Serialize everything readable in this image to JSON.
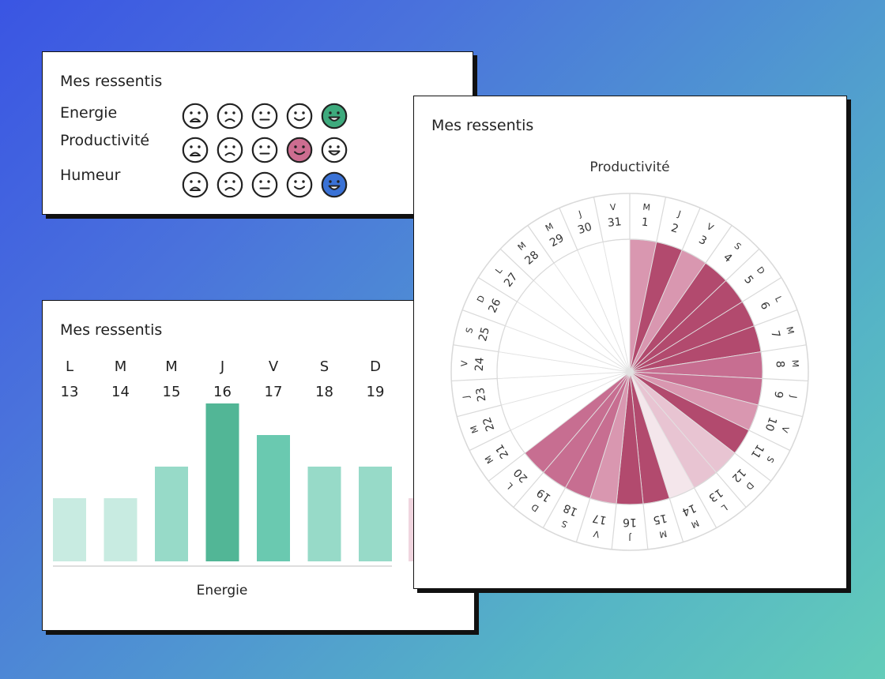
{
  "moods_card": {
    "title": "Mes ressentis",
    "rows": [
      {
        "label": "Energie",
        "selected": 5,
        "color": "#3eaa7d"
      },
      {
        "label": "Productivité",
        "selected": 4,
        "color": "#cd6d90"
      },
      {
        "label": "Humeur",
        "selected": 5,
        "color": "#3a72d6"
      }
    ],
    "faces": [
      "very-sad-face-icon",
      "sad-face-icon",
      "neutral-face-icon",
      "smile-face-icon",
      "grin-face-icon"
    ]
  },
  "energy_card": {
    "title": "Mes ressentis"
  },
  "productivity_card": {
    "title": "Mes ressentis"
  },
  "chart_data": [
    {
      "type": "bar",
      "xlabel": "Energie",
      "categories": [
        "L",
        "M",
        "M",
        "J",
        "V",
        "S",
        "D"
      ],
      "days": [
        "13",
        "14",
        "15",
        "16",
        "17",
        "18",
        "19"
      ],
      "values": [
        2,
        2,
        3,
        5,
        4,
        3,
        3
      ],
      "ylim": [
        0,
        5
      ],
      "colors": [
        "#c8ebe1",
        "#c8ebe1",
        "#97dac8",
        "#52b696",
        "#6ac9b0",
        "#97dac8",
        "#97dac8"
      ]
    },
    {
      "type": "pie",
      "title": "Productivité",
      "days": [
        "1",
        "2",
        "3",
        "4",
        "5",
        "6",
        "7",
        "8",
        "9",
        "10",
        "11",
        "12",
        "13",
        "14",
        "15",
        "16",
        "17",
        "18",
        "19",
        "20",
        "21",
        "22",
        "23",
        "24",
        "25",
        "26",
        "27",
        "28",
        "29",
        "30",
        "31"
      ],
      "weekdays": [
        "M",
        "J",
        "V",
        "S",
        "D",
        "L",
        "M",
        "M",
        "J",
        "V",
        "S",
        "D",
        "L",
        "M",
        "M",
        "J",
        "V",
        "S",
        "D",
        "L",
        "M",
        "M",
        "J",
        "V",
        "S",
        "D",
        "L",
        "M",
        "M",
        "J",
        "V"
      ],
      "values": [
        3,
        5,
        3,
        5,
        5,
        5,
        5,
        4,
        4,
        3,
        5,
        2,
        2,
        1,
        5,
        5,
        3,
        4,
        4,
        4,
        0,
        0,
        0,
        0,
        0,
        0,
        0,
        0,
        0,
        0,
        0
      ],
      "ylim": [
        0,
        5
      ],
      "colors": [
        "#ffffff",
        "#f4e6eb",
        "#e8c4d2",
        "#d997b0",
        "#c76e91",
        "#b24a6e"
      ]
    }
  ]
}
